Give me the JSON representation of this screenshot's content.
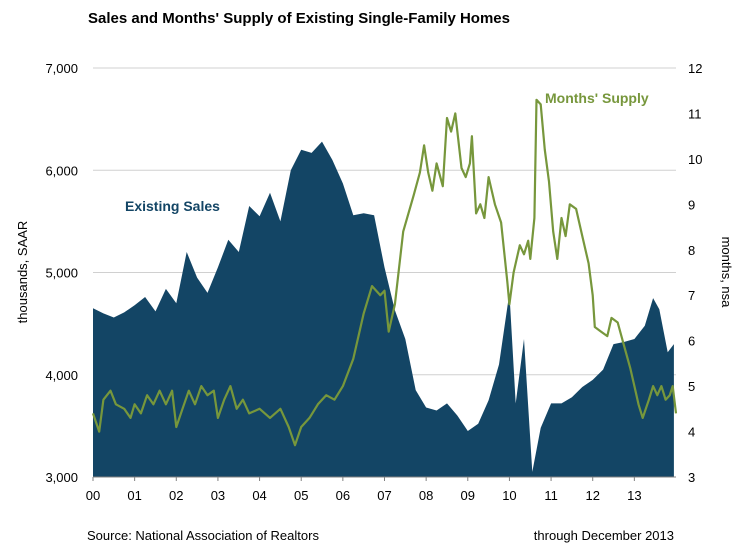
{
  "title": "Sales and Months' Supply of Existing Single-Family Homes",
  "footer": {
    "source": "Source: National Association of Realtors",
    "through": "through December 2013"
  },
  "colors": {
    "sales": "#134565",
    "supply": "#77973c",
    "grid": "#d0d0d0",
    "axis": "#808080"
  },
  "chart_data": {
    "type": "area",
    "title": "Sales and Months' Supply of Existing Single-Family Homes",
    "x_tick_labels": [
      "00",
      "01",
      "02",
      "03",
      "04",
      "05",
      "06",
      "07",
      "08",
      "09",
      "10",
      "11",
      "12",
      "13"
    ],
    "xlim": [
      2000.0,
      2014.0
    ],
    "x_unit": "year (monthly data)",
    "y_left": {
      "label": "thousands, SAAR",
      "lim": [
        3000,
        7000
      ],
      "ticks": [
        3000,
        4000,
        5000,
        6000,
        7000
      ],
      "tick_labels": [
        "3,000",
        "4,000",
        "5,000",
        "6,000",
        "7,000"
      ]
    },
    "y_right": {
      "label": "months, nsa",
      "lim": [
        3,
        12
      ],
      "ticks": [
        3,
        4,
        5,
        6,
        7,
        8,
        9,
        10,
        11,
        12
      ],
      "tick_labels": [
        "3",
        "4",
        "5",
        "6",
        "7",
        "8",
        "9",
        "10",
        "11",
        "12"
      ]
    },
    "grid": true,
    "series": [
      {
        "name": "Existing Sales",
        "type": "area",
        "axis": "left",
        "color": "#134565",
        "points": [
          [
            2000.0,
            4650
          ],
          [
            2000.25,
            4600
          ],
          [
            2000.5,
            4560
          ],
          [
            2000.75,
            4610
          ],
          [
            2001.0,
            4680
          ],
          [
            2001.25,
            4760
          ],
          [
            2001.5,
            4620
          ],
          [
            2001.75,
            4840
          ],
          [
            2002.0,
            4700
          ],
          [
            2002.25,
            5200
          ],
          [
            2002.5,
            4950
          ],
          [
            2002.75,
            4800
          ],
          [
            2003.0,
            5050
          ],
          [
            2003.25,
            5320
          ],
          [
            2003.5,
            5200
          ],
          [
            2003.75,
            5650
          ],
          [
            2004.0,
            5550
          ],
          [
            2004.25,
            5780
          ],
          [
            2004.5,
            5500
          ],
          [
            2004.75,
            6000
          ],
          [
            2005.0,
            6200
          ],
          [
            2005.25,
            6170
          ],
          [
            2005.5,
            6280
          ],
          [
            2005.75,
            6100
          ],
          [
            2006.0,
            5870
          ],
          [
            2006.25,
            5560
          ],
          [
            2006.5,
            5580
          ],
          [
            2006.75,
            5560
          ],
          [
            2007.0,
            5050
          ],
          [
            2007.25,
            4630
          ],
          [
            2007.5,
            4350
          ],
          [
            2007.75,
            3850
          ],
          [
            2008.0,
            3680
          ],
          [
            2008.25,
            3650
          ],
          [
            2008.5,
            3720
          ],
          [
            2008.75,
            3600
          ],
          [
            2009.0,
            3450
          ],
          [
            2009.25,
            3520
          ],
          [
            2009.5,
            3750
          ],
          [
            2009.75,
            4100
          ],
          [
            2010.0,
            4800
          ],
          [
            2010.15,
            3720
          ],
          [
            2010.35,
            4350
          ],
          [
            2010.55,
            3050
          ],
          [
            2010.75,
            3480
          ],
          [
            2011.0,
            3720
          ],
          [
            2011.25,
            3720
          ],
          [
            2011.5,
            3780
          ],
          [
            2011.75,
            3880
          ],
          [
            2012.0,
            3950
          ],
          [
            2012.25,
            4050
          ],
          [
            2012.5,
            4300
          ],
          [
            2012.75,
            4320
          ],
          [
            2013.0,
            4350
          ],
          [
            2013.25,
            4480
          ],
          [
            2013.45,
            4750
          ],
          [
            2013.6,
            4640
          ],
          [
            2013.8,
            4220
          ],
          [
            2013.95,
            4300
          ]
        ]
      },
      {
        "name": "Months' Supply",
        "type": "line",
        "axis": "right",
        "color": "#77973c",
        "points": [
          [
            2000.0,
            4.4
          ],
          [
            2000.15,
            4.0
          ],
          [
            2000.25,
            4.7
          ],
          [
            2000.42,
            4.9
          ],
          [
            2000.55,
            4.6
          ],
          [
            2000.75,
            4.5
          ],
          [
            2000.9,
            4.3
          ],
          [
            2001.0,
            4.6
          ],
          [
            2001.15,
            4.4
          ],
          [
            2001.3,
            4.8
          ],
          [
            2001.45,
            4.6
          ],
          [
            2001.6,
            4.9
          ],
          [
            2001.75,
            4.6
          ],
          [
            2001.9,
            4.9
          ],
          [
            2002.0,
            4.1
          ],
          [
            2002.15,
            4.5
          ],
          [
            2002.3,
            4.9
          ],
          [
            2002.45,
            4.6
          ],
          [
            2002.6,
            5.0
          ],
          [
            2002.75,
            4.8
          ],
          [
            2002.9,
            4.9
          ],
          [
            2003.0,
            4.3
          ],
          [
            2003.15,
            4.7
          ],
          [
            2003.3,
            5.0
          ],
          [
            2003.45,
            4.5
          ],
          [
            2003.6,
            4.7
          ],
          [
            2003.75,
            4.4
          ],
          [
            2004.0,
            4.5
          ],
          [
            2004.25,
            4.3
          ],
          [
            2004.5,
            4.5
          ],
          [
            2004.7,
            4.1
          ],
          [
            2004.85,
            3.7
          ],
          [
            2005.0,
            4.1
          ],
          [
            2005.2,
            4.3
          ],
          [
            2005.4,
            4.6
          ],
          [
            2005.6,
            4.8
          ],
          [
            2005.8,
            4.7
          ],
          [
            2006.0,
            5.0
          ],
          [
            2006.25,
            5.6
          ],
          [
            2006.5,
            6.6
          ],
          [
            2006.7,
            7.2
          ],
          [
            2006.9,
            7.0
          ],
          [
            2007.0,
            7.1
          ],
          [
            2007.1,
            6.2
          ],
          [
            2007.25,
            6.8
          ],
          [
            2007.45,
            8.4
          ],
          [
            2007.7,
            9.2
          ],
          [
            2007.85,
            9.7
          ],
          [
            2007.95,
            10.3
          ],
          [
            2008.05,
            9.7
          ],
          [
            2008.15,
            9.3
          ],
          [
            2008.25,
            9.9
          ],
          [
            2008.4,
            9.4
          ],
          [
            2008.5,
            10.9
          ],
          [
            2008.6,
            10.6
          ],
          [
            2008.7,
            11.0
          ],
          [
            2008.85,
            9.8
          ],
          [
            2008.95,
            9.6
          ],
          [
            2009.05,
            9.9
          ],
          [
            2009.1,
            10.5
          ],
          [
            2009.2,
            8.8
          ],
          [
            2009.3,
            9.0
          ],
          [
            2009.4,
            8.7
          ],
          [
            2009.5,
            9.6
          ],
          [
            2009.65,
            9.0
          ],
          [
            2009.8,
            8.6
          ],
          [
            2009.95,
            7.3
          ],
          [
            2010.0,
            6.8
          ],
          [
            2010.1,
            7.5
          ],
          [
            2010.25,
            8.1
          ],
          [
            2010.35,
            7.9
          ],
          [
            2010.45,
            8.2
          ],
          [
            2010.5,
            7.8
          ],
          [
            2010.6,
            8.7
          ],
          [
            2010.65,
            11.3
          ],
          [
            2010.75,
            11.2
          ],
          [
            2010.85,
            10.2
          ],
          [
            2010.95,
            9.5
          ],
          [
            2011.05,
            8.4
          ],
          [
            2011.15,
            7.8
          ],
          [
            2011.25,
            8.7
          ],
          [
            2011.35,
            8.3
          ],
          [
            2011.45,
            9.0
          ],
          [
            2011.6,
            8.9
          ],
          [
            2011.75,
            8.3
          ],
          [
            2011.9,
            7.7
          ],
          [
            2012.0,
            7.0
          ],
          [
            2012.05,
            6.3
          ],
          [
            2012.2,
            6.2
          ],
          [
            2012.35,
            6.1
          ],
          [
            2012.45,
            6.5
          ],
          [
            2012.6,
            6.4
          ],
          [
            2012.75,
            5.9
          ],
          [
            2012.9,
            5.4
          ],
          [
            2013.0,
            5.0
          ],
          [
            2013.1,
            4.6
          ],
          [
            2013.2,
            4.3
          ],
          [
            2013.35,
            4.7
          ],
          [
            2013.45,
            5.0
          ],
          [
            2013.55,
            4.8
          ],
          [
            2013.65,
            5.0
          ],
          [
            2013.75,
            4.7
          ],
          [
            2013.85,
            4.8
          ],
          [
            2013.92,
            5.0
          ],
          [
            2014.0,
            4.4
          ]
        ]
      }
    ],
    "annotations": [
      {
        "text": "Existing Sales",
        "series": "Existing Sales"
      },
      {
        "text": "Months' Supply",
        "series": "Months' Supply"
      }
    ]
  }
}
